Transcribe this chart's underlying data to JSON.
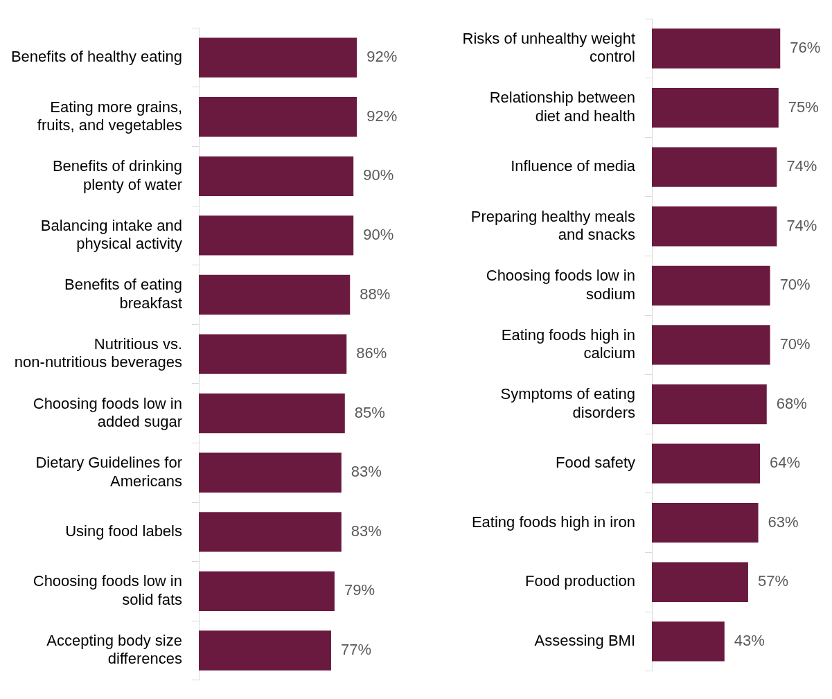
{
  "chart_data": [
    {
      "type": "bar",
      "orientation": "horizontal",
      "color": "#6b1a3f",
      "grid": false,
      "legend": false,
      "tick_labels": "y",
      "categories": [
        "Benefits of healthy eating",
        "Eating more grains, fruits, and vegetables",
        "Benefits of drinking plenty of water",
        "Balancing intake and physical activity",
        "Benefits of eating breakfast",
        "Nutritious vs. non-nutritious beverages",
        "Choosing foods low in added sugar",
        "Dietary Guidelines for Americans",
        "Using food labels",
        "Choosing foods low in solid fats",
        "Accepting body size differences"
      ],
      "values": [
        92,
        92,
        90,
        90,
        88,
        86,
        85,
        83,
        83,
        79,
        77
      ],
      "value_labels": [
        "92%",
        "92%",
        "90%",
        "90%",
        "88%",
        "86%",
        "85%",
        "83%",
        "83%",
        "79%",
        "77%"
      ]
    },
    {
      "type": "bar",
      "orientation": "horizontal",
      "color": "#6b1a3f",
      "grid": false,
      "legend": false,
      "tick_labels": "y",
      "categories": [
        "Risks of unhealthy weight control",
        "Relationship between diet and health",
        "Influence of media",
        "Preparing healthy meals and snacks",
        "Choosing foods low in sodium",
        "Eating foods high in calcium",
        "Symptoms of eating disorders",
        "Food safety",
        "Eating foods high in iron",
        "Food production",
        "Assessing BMI"
      ],
      "values": [
        76,
        75,
        74,
        74,
        70,
        70,
        68,
        64,
        63,
        57,
        43
      ],
      "value_labels": [
        "76%",
        "75%",
        "74%",
        "74%",
        "70%",
        "70%",
        "68%",
        "64%",
        "63%",
        "57%",
        "43%"
      ]
    }
  ]
}
